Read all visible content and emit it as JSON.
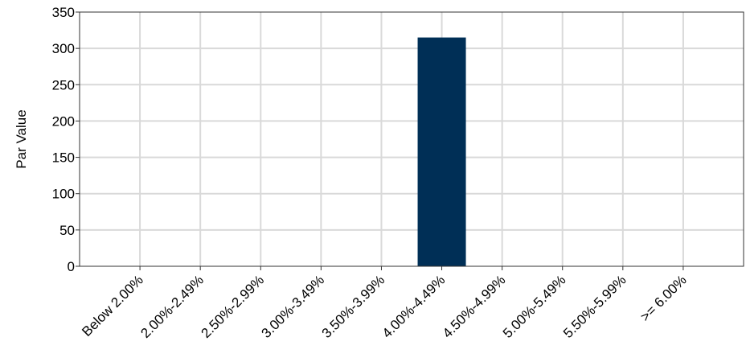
{
  "chart_data": {
    "type": "bar",
    "title": "",
    "xlabel": "",
    "ylabel": "Par Value",
    "categories": [
      "Below 2.00%",
      "2.00%-2.49%",
      "2.50%-2.99%",
      "3.00%-3.49%",
      "3.50%-3.99%",
      "4.00%-4.49%",
      "4.50%-4.99%",
      "5.00%-5.49%",
      "5.50%-5.99%",
      ">= 6.00%"
    ],
    "values": [
      0,
      0,
      0,
      0,
      0,
      315,
      0,
      0,
      0,
      0
    ],
    "ylim": [
      0,
      350
    ],
    "yticks": [
      0,
      50,
      100,
      150,
      200,
      250,
      300,
      350
    ],
    "grid": true,
    "legend": "none",
    "bar_color": "#002f56",
    "grid_color": "#d9d9d9"
  }
}
